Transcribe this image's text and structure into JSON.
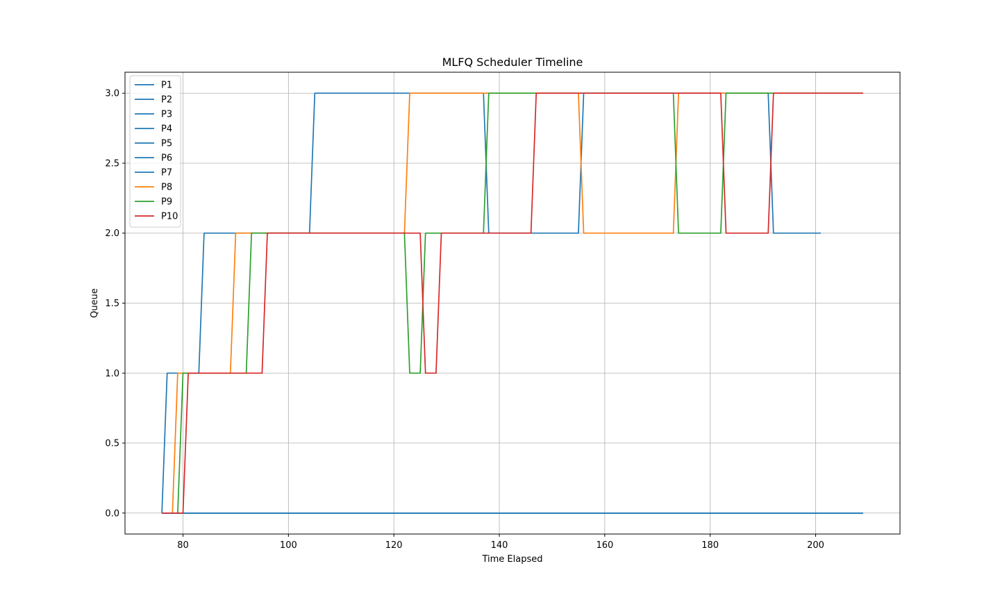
{
  "chart_data": {
    "type": "line",
    "title": "MLFQ Scheduler Timeline",
    "xlabel": "Time Elapsed",
    "ylabel": "Queue",
    "xlim": [
      69,
      216
    ],
    "ylim": [
      -0.15,
      3.15
    ],
    "xticks": [
      80,
      100,
      120,
      140,
      160,
      180,
      200
    ],
    "yticks": [
      0.0,
      0.5,
      1.0,
      1.5,
      2.0,
      2.5,
      3.0
    ],
    "xtick_labels": [
      "80",
      "100",
      "120",
      "140",
      "160",
      "180",
      "200"
    ],
    "ytick_labels": [
      "0.0",
      "0.5",
      "1.0",
      "1.5",
      "2.0",
      "2.5",
      "3.0"
    ],
    "grid": true,
    "legend_position": "upper-left",
    "series": [
      {
        "name": "P1",
        "color": "#1f77b4",
        "x": [
          76,
          209
        ],
        "y": [
          0,
          0
        ]
      },
      {
        "name": "P2",
        "color": "#1f77b4",
        "x": [
          76,
          209
        ],
        "y": [
          0,
          0
        ]
      },
      {
        "name": "P3",
        "color": "#1f77b4",
        "x": [
          76,
          209
        ],
        "y": [
          0,
          0
        ]
      },
      {
        "name": "P4",
        "color": "#1f77b4",
        "x": [
          76,
          209
        ],
        "y": [
          0,
          0
        ]
      },
      {
        "name": "P5",
        "color": "#1f77b4",
        "x": [
          76,
          209
        ],
        "y": [
          0,
          0
        ]
      },
      {
        "name": "P6",
        "color": "#1f77b4",
        "x": [
          76,
          209
        ],
        "y": [
          0,
          0
        ]
      },
      {
        "name": "P7",
        "color": "#1f77b4",
        "x": [
          76,
          77,
          78,
          83,
          84,
          86,
          87,
          104,
          105,
          113,
          114,
          137,
          138,
          146,
          147,
          155,
          156,
          164,
          165,
          191,
          192,
          196,
          197,
          201
        ],
        "y": [
          0,
          1,
          1,
          1,
          2,
          2,
          2,
          2,
          3,
          3,
          3,
          3,
          2,
          2,
          2,
          2,
          3,
          3,
          3,
          3,
          2,
          2,
          2,
          2
        ]
      },
      {
        "name": "P8",
        "color": "#ff7f0e",
        "x": [
          78,
          79,
          89,
          90,
          122,
          123,
          155,
          156,
          173,
          174,
          209
        ],
        "y": [
          0,
          1,
          1,
          2,
          2,
          3,
          3,
          2,
          2,
          3,
          3
        ]
      },
      {
        "name": "P9",
        "color": "#2ca02c",
        "x": [
          79,
          80,
          92,
          93,
          122,
          123,
          125,
          126,
          137,
          138,
          173,
          174,
          182,
          183,
          209
        ],
        "y": [
          0,
          1,
          1,
          2,
          2,
          1,
          1,
          2,
          2,
          3,
          3,
          2,
          2,
          3,
          3
        ]
      },
      {
        "name": "P10",
        "color": "#d62728",
        "x": [
          76,
          80,
          81,
          95,
          96,
          125,
          126,
          128,
          129,
          146,
          147,
          182,
          183,
          191,
          192,
          209
        ],
        "y": [
          0,
          0,
          1,
          1,
          2,
          2,
          1,
          1,
          2,
          2,
          3,
          3,
          2,
          2,
          3,
          3
        ]
      }
    ]
  }
}
